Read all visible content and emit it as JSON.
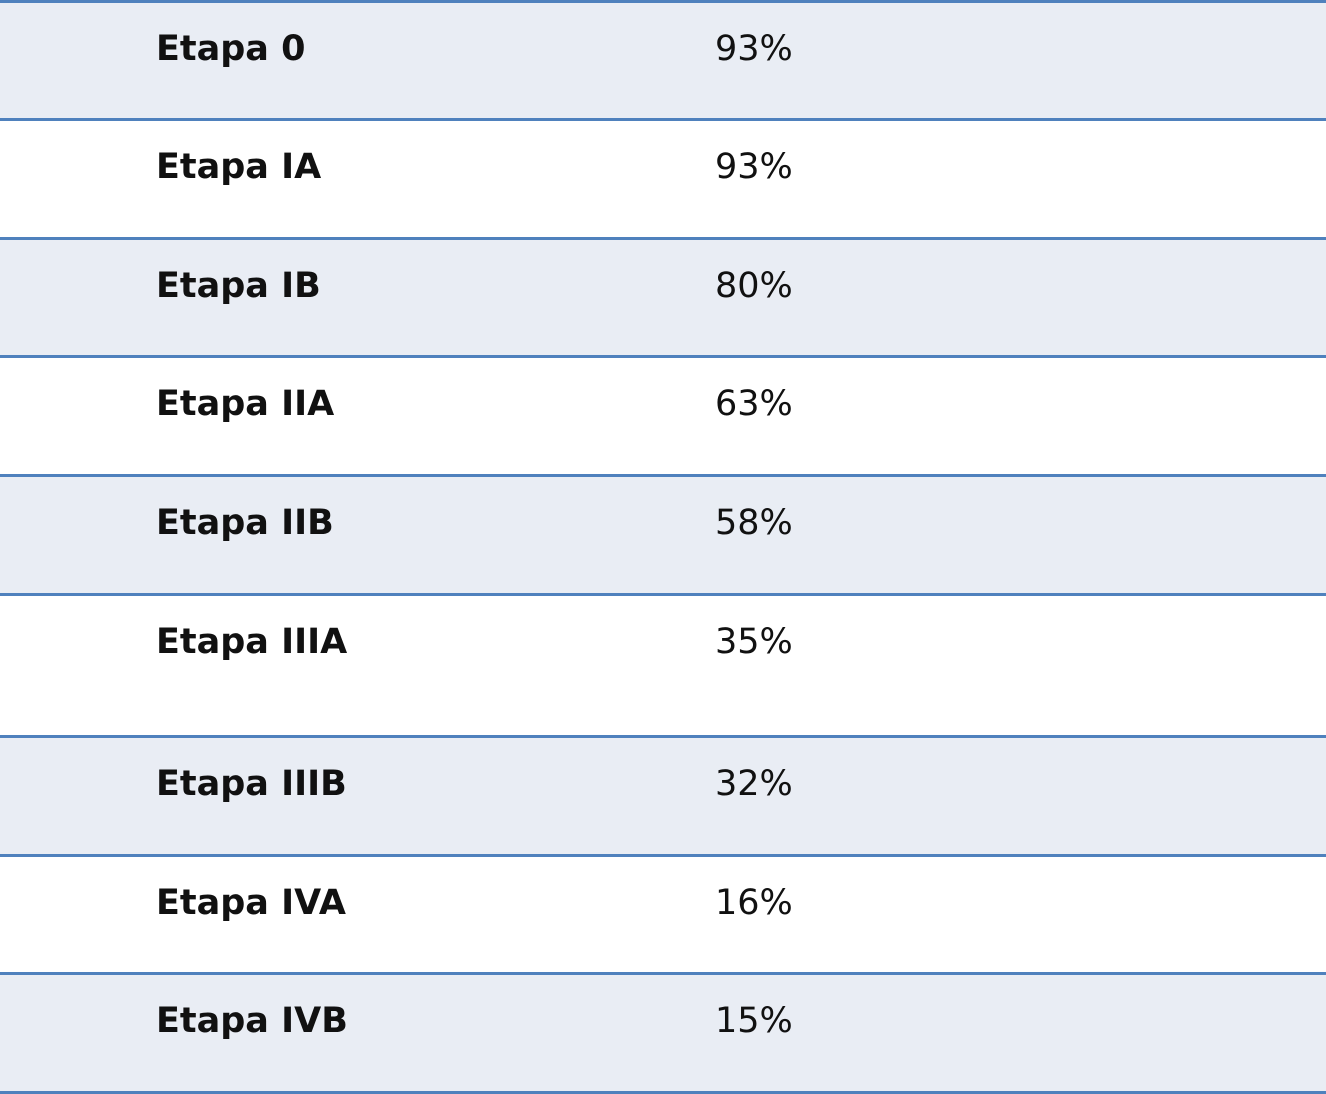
{
  "table": {
    "rows": [
      [
        "Etapa 0",
        "93%"
      ],
      [
        "Etapa IA",
        "93%"
      ],
      [
        "Etapa IB",
        "80%"
      ],
      [
        "Etapa IIA",
        "63%"
      ],
      [
        "Etapa IIB",
        "58%"
      ],
      [
        "Etapa IIIA",
        "35%"
      ],
      [
        "Etapa IIIB",
        "32%"
      ],
      [
        "Etapa IVA",
        "16%"
      ],
      [
        "Etapa IVB",
        "15%"
      ]
    ]
  }
}
